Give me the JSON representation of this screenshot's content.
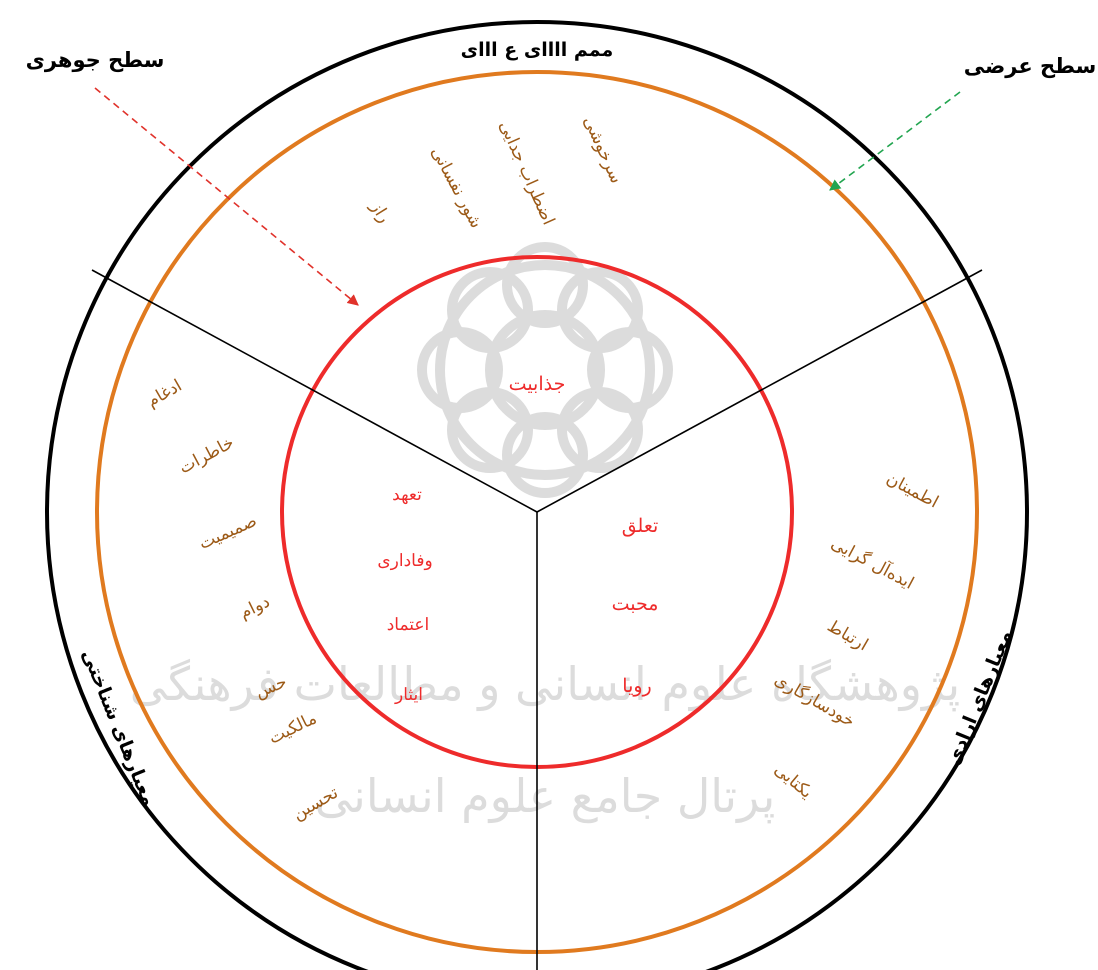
{
  "colors": {
    "outer_ring": "#000000",
    "middle_ring": "#e07a1f",
    "inner_ring": "#ee2b2b",
    "outer_text": "#9c5a17",
    "inner_text": "#ee2b2b",
    "red_arrow": "#e0322b",
    "green_arrow": "#22a550",
    "watermark": "#dcdcdc"
  },
  "external_labels": {
    "left": "سطح جوهری",
    "right": "سطح عرضی"
  },
  "sector_titles": {
    "top": "ممم اااای ع ااای",
    "right": "معیارهای ارادی",
    "left": "معیارهای شناختی"
  },
  "center": {
    "label": "جذابیت"
  },
  "outer_ring_items": {
    "top": [
      "سرخوشی",
      "اضطراب جدایی",
      "شور نفسانی",
      "راز"
    ],
    "right": [
      "اطمینان",
      "ایده‌آل گرایی",
      "ارتباط",
      "خودسازگاری",
      "یکتایی"
    ],
    "left": [
      "ادغام",
      "خاطرات",
      "صمیمیت",
      "دوام",
      "حس",
      "مالکیت",
      "تحسین"
    ]
  },
  "inner_ring_items": {
    "left": [
      "تعهد",
      "وفاداری",
      "اعتماد",
      "ایثار"
    ],
    "right": [
      "تعلق",
      "محبت",
      "رویا"
    ]
  },
  "watermark_text": {
    "line1": "پژوهشگاه علوم انسانی و مطالعات فرهنگی",
    "line2": "پرتال جامع علوم انسانی"
  }
}
